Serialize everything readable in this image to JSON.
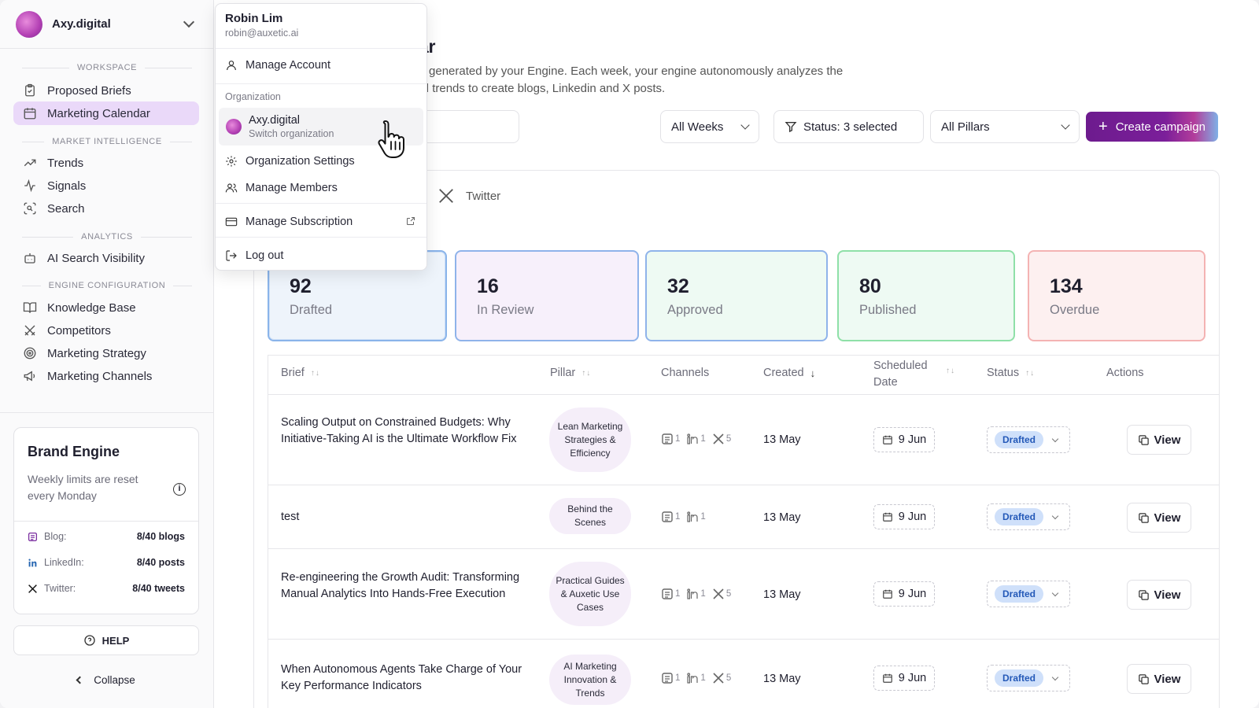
{
  "org": {
    "name": "Axy.digital"
  },
  "sidebar": {
    "sections": {
      "workspace": "WORKSPACE",
      "market": "MARKET INTELLIGENCE",
      "analytics": "ANALYTICS",
      "engine": "ENGINE CONFIGURATION"
    },
    "items": {
      "proposed_briefs": "Proposed Briefs",
      "marketing_calendar": "Marketing Calendar",
      "trends": "Trends",
      "signals": "Signals",
      "search": "Search",
      "ai_visibility": "AI Search Visibility",
      "knowledge_base": "Knowledge Base",
      "competitors": "Competitors",
      "marketing_strategy": "Marketing Strategy",
      "marketing_channels": "Marketing Channels"
    },
    "brand_engine": {
      "title": "Brand Engine",
      "subtitle": "Weekly limits are reset every Monday",
      "blog_label": "Blog:",
      "blog_value": "8/40 blogs",
      "linkedin_label": "LinkedIn:",
      "linkedin_value": "8/40 posts",
      "twitter_label": "Twitter:",
      "twitter_value": "8/40 tweets"
    },
    "help_label": "HELP",
    "collapse_label": "Collapse"
  },
  "main": {
    "title_visible": "ar",
    "description_line1": "ent generated by your Engine. Each week, your engine autonomously analyzes the",
    "description_line2": "and trends to create blogs, Linkedin and X posts.",
    "filters": {
      "weeks": "All Weeks",
      "status": "Status: 3 selected",
      "pillars": "All Pillars"
    },
    "create_label": "Create campaign",
    "tab_twitter": "Twitter",
    "stats": [
      {
        "value": "92",
        "label": "Drafted"
      },
      {
        "value": "16",
        "label": "In Review"
      },
      {
        "value": "32",
        "label": "Approved"
      },
      {
        "value": "80",
        "label": "Published"
      },
      {
        "value": "134",
        "label": "Overdue"
      }
    ],
    "table": {
      "headers": {
        "brief": "Brief",
        "pillar": "Pillar",
        "channels": "Channels",
        "created": "Created",
        "scheduled_1": "Scheduled",
        "scheduled_2": "Date",
        "status": "Status",
        "actions": "Actions"
      },
      "rows": [
        {
          "brief": "Scaling Output on Constrained Budgets: Why Initiative-Taking AI is the Ultimate Workflow Fix",
          "pillar": "Lean Marketing Strategies & Efficiency",
          "blog": "1",
          "linkedin": "1",
          "twitter": "5",
          "created": "13 May",
          "scheduled": "9 Jun",
          "status": "Drafted",
          "action": "View"
        },
        {
          "brief": "test",
          "pillar": "Behind the Scenes",
          "blog": "1",
          "linkedin": "1",
          "twitter": "",
          "created": "13 May",
          "scheduled": "9 Jun",
          "status": "Drafted",
          "action": "View"
        },
        {
          "brief": "Re-engineering the Growth Audit: Transforming Manual Analytics Into Hands-Free Execution",
          "pillar": "Practical Guides & Auxetic Use Cases",
          "blog": "1",
          "linkedin": "1",
          "twitter": "5",
          "created": "13 May",
          "scheduled": "9 Jun",
          "status": "Drafted",
          "action": "View"
        },
        {
          "brief": "When Autonomous Agents Take Charge of Your Key Performance Indicators",
          "pillar": "AI Marketing Innovation & Trends",
          "blog": "1",
          "linkedin": "1",
          "twitter": "5",
          "created": "13 May",
          "scheduled": "9 Jun",
          "status": "Drafted",
          "action": "View"
        }
      ]
    }
  },
  "menu": {
    "user_name": "Robin Lim",
    "user_email": "robin@auxetic.ai",
    "manage_account": "Manage Account",
    "org_label": "Organization",
    "org_name": "Axy.digital",
    "org_switch": "Switch organization",
    "org_settings": "Organization Settings",
    "manage_members": "Manage Members",
    "manage_subscription": "Manage Subscription",
    "logout": "Log out"
  },
  "colors": {
    "accent": "#6d1b8e",
    "active_nav": "#ead9f9",
    "drafted_badge": "#cfe0fa"
  }
}
